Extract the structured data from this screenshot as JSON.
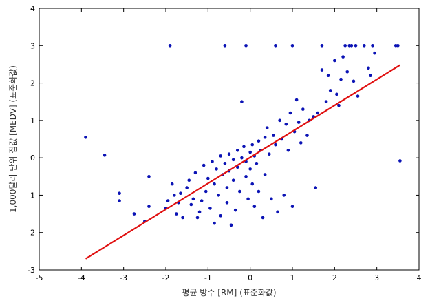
{
  "chart_data": {
    "type": "scatter",
    "xlabel": "평균 방수 [RM] (표준화값)",
    "ylabel": "1,000달러 단위 집값 [MEDV] (표준화값)",
    "xlim": [
      -5,
      4
    ],
    "ylim": [
      -3,
      4
    ],
    "x_ticks": [
      "-5",
      "-4",
      "-3",
      "-2",
      "-1",
      "0",
      "1",
      "2",
      "3",
      "4"
    ],
    "y_ticks": [
      "-3",
      "-2",
      "-1",
      "0",
      "1",
      "2",
      "3",
      "4"
    ],
    "grid": false,
    "colors": {
      "points": "#0b13b5",
      "fit_line": "#e01010"
    },
    "fit_line": {
      "x": [
        -3.9,
        3.55
      ],
      "y": [
        -2.7,
        2.48
      ]
    },
    "series": [
      {
        "points": [
          [
            -3.9,
            0.55
          ],
          [
            -3.45,
            0.07
          ],
          [
            -3.1,
            -0.95
          ],
          [
            -3.1,
            -1.15
          ],
          [
            -2.75,
            -1.5
          ],
          [
            -2.5,
            -1.7
          ],
          [
            -2.4,
            -1.3
          ],
          [
            -2.4,
            -0.5
          ],
          [
            -2.0,
            -1.35
          ],
          [
            -1.95,
            -1.15
          ],
          [
            -1.9,
            3.0
          ],
          [
            -1.85,
            -0.7
          ],
          [
            -1.8,
            -1.0
          ],
          [
            -1.75,
            -1.5
          ],
          [
            -1.7,
            -1.2
          ],
          [
            -1.65,
            -0.95
          ],
          [
            -1.6,
            -1.6
          ],
          [
            -1.5,
            -0.8
          ],
          [
            -1.45,
            -0.6
          ],
          [
            -1.4,
            -1.25
          ],
          [
            -1.35,
            -1.1
          ],
          [
            -1.3,
            -0.4
          ],
          [
            -1.25,
            -1.6
          ],
          [
            -1.2,
            -1.45
          ],
          [
            -1.15,
            -1.15
          ],
          [
            -1.1,
            -0.2
          ],
          [
            -1.05,
            -0.9
          ],
          [
            -1.0,
            -0.55
          ],
          [
            -0.95,
            -1.35
          ],
          [
            -0.9,
            -0.1
          ],
          [
            -0.85,
            -0.7
          ],
          [
            -0.85,
            -1.75
          ],
          [
            -0.8,
            -0.3
          ],
          [
            -0.75,
            -1.0
          ],
          [
            -0.7,
            0.05
          ],
          [
            -0.7,
            -1.55
          ],
          [
            -0.65,
            -0.45
          ],
          [
            -0.6,
            3.0
          ],
          [
            -0.6,
            -0.15
          ],
          [
            -0.55,
            -0.8
          ],
          [
            -0.55,
            -1.2
          ],
          [
            -0.5,
            0.1
          ],
          [
            -0.5,
            -0.35
          ],
          [
            -0.45,
            -1.8
          ],
          [
            -0.4,
            -0.05
          ],
          [
            -0.4,
            -0.6
          ],
          [
            -0.35,
            -1.4
          ],
          [
            -0.3,
            0.2
          ],
          [
            -0.3,
            -0.25
          ],
          [
            -0.25,
            -0.9
          ],
          [
            -0.2,
            1.5
          ],
          [
            -0.2,
            0.0
          ],
          [
            -0.15,
            0.3
          ],
          [
            -0.1,
            3.0
          ],
          [
            -0.1,
            -0.1
          ],
          [
            -0.1,
            -0.5
          ],
          [
            -0.05,
            -1.1
          ],
          [
            0.0,
            0.15
          ],
          [
            0.0,
            -0.3
          ],
          [
            0.05,
            0.35
          ],
          [
            0.05,
            -0.7
          ],
          [
            0.1,
            -1.3
          ],
          [
            0.1,
            0.05
          ],
          [
            0.15,
            -0.15
          ],
          [
            0.2,
            0.45
          ],
          [
            0.2,
            -0.9
          ],
          [
            0.25,
            0.2
          ],
          [
            0.3,
            -1.6
          ],
          [
            0.35,
            0.55
          ],
          [
            0.35,
            -0.45
          ],
          [
            0.4,
            0.8
          ],
          [
            0.45,
            0.1
          ],
          [
            0.5,
            -1.1
          ],
          [
            0.55,
            0.6
          ],
          [
            0.6,
            3.0
          ],
          [
            0.6,
            0.35
          ],
          [
            0.65,
            -1.45
          ],
          [
            0.7,
            1.0
          ],
          [
            0.75,
            0.5
          ],
          [
            0.8,
            -1.0
          ],
          [
            0.85,
            0.9
          ],
          [
            0.9,
            0.2
          ],
          [
            0.95,
            1.2
          ],
          [
            1.0,
            3.0
          ],
          [
            1.0,
            -1.3
          ],
          [
            1.05,
            0.7
          ],
          [
            1.1,
            1.55
          ],
          [
            1.15,
            0.95
          ],
          [
            1.2,
            0.4
          ],
          [
            1.25,
            1.3
          ],
          [
            1.35,
            0.6
          ],
          [
            1.4,
            1.0
          ],
          [
            1.5,
            1.1
          ],
          [
            1.55,
            -0.8
          ],
          [
            1.6,
            1.2
          ],
          [
            1.7,
            3.0
          ],
          [
            1.7,
            2.35
          ],
          [
            1.8,
            1.5
          ],
          [
            1.85,
            2.2
          ],
          [
            1.9,
            1.8
          ],
          [
            2.0,
            2.6
          ],
          [
            2.05,
            1.7
          ],
          [
            2.1,
            1.4
          ],
          [
            2.15,
            2.1
          ],
          [
            2.2,
            2.7
          ],
          [
            2.25,
            3.0
          ],
          [
            2.3,
            2.3
          ],
          [
            2.35,
            3.0
          ],
          [
            2.4,
            3.0
          ],
          [
            2.45,
            2.05
          ],
          [
            2.5,
            3.0
          ],
          [
            2.55,
            1.65
          ],
          [
            2.7,
            3.0
          ],
          [
            2.8,
            2.4
          ],
          [
            2.85,
            2.2
          ],
          [
            2.9,
            3.0
          ],
          [
            2.95,
            2.8
          ],
          [
            3.45,
            3.0
          ],
          [
            3.5,
            3.0
          ],
          [
            3.55,
            -0.08
          ]
        ]
      }
    ]
  }
}
